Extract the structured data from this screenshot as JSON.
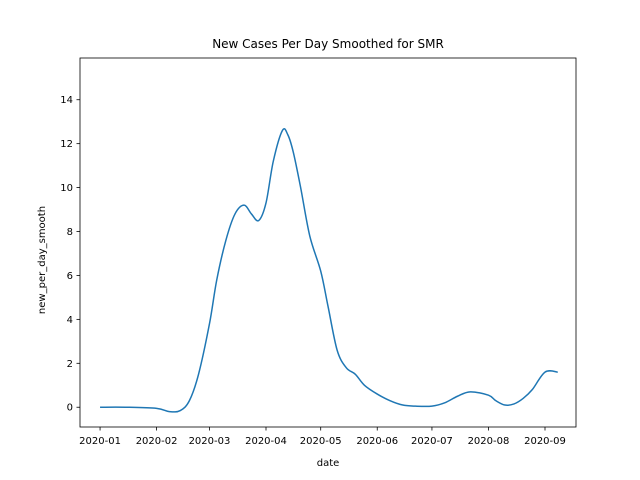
{
  "chart_data": {
    "type": "line",
    "title": "New Cases Per Day Smoothed for SMR",
    "xlabel": "date",
    "ylabel": "new_per_day_smooth",
    "xlim": [
      "2019-12-21",
      "2020-09-18"
    ],
    "ylim": [
      -0.9,
      15.9
    ],
    "x_ticks": [
      "2020-01",
      "2020-02",
      "2020-03",
      "2020-04",
      "2020-05",
      "2020-06",
      "2020-07",
      "2020-08",
      "2020-09"
    ],
    "x_tick_dates": [
      "2020-01-01",
      "2020-02-01",
      "2020-03-01",
      "2020-04-01",
      "2020-05-01",
      "2020-06-01",
      "2020-07-01",
      "2020-08-01",
      "2020-09-01"
    ],
    "y_ticks": [
      0,
      2,
      4,
      6,
      8,
      10,
      12,
      14
    ],
    "grid": false,
    "legend": "none",
    "color": "#1f77b4",
    "series": [
      {
        "x": [
          "2020-01-01",
          "2020-01-15",
          "2020-02-01",
          "2020-02-08",
          "2020-02-14",
          "2020-02-19",
          "2020-02-24",
          "2020-03-01",
          "2020-03-05",
          "2020-03-10",
          "2020-03-15",
          "2020-03-20",
          "2020-03-24",
          "2020-03-28",
          "2020-04-01",
          "2020-04-05",
          "2020-04-10",
          "2020-04-13",
          "2020-04-16",
          "2020-04-20",
          "2020-04-25",
          "2020-05-01",
          "2020-05-05",
          "2020-05-10",
          "2020-05-15",
          "2020-05-20",
          "2020-05-25",
          "2020-06-01",
          "2020-06-08",
          "2020-06-15",
          "2020-06-22",
          "2020-07-01",
          "2020-07-08",
          "2020-07-15",
          "2020-07-22",
          "2020-08-01",
          "2020-08-05",
          "2020-08-10",
          "2020-08-15",
          "2020-08-20",
          "2020-08-25",
          "2020-09-01",
          "2020-09-08"
        ],
        "y": [
          0,
          0,
          -0.05,
          -0.2,
          -0.15,
          0.3,
          1.5,
          3.8,
          5.8,
          7.6,
          8.8,
          9.2,
          8.8,
          8.5,
          9.3,
          11.2,
          12.6,
          12.4,
          11.6,
          10.0,
          7.8,
          6.2,
          4.6,
          2.6,
          1.8,
          1.5,
          1.0,
          0.6,
          0.3,
          0.1,
          0.05,
          0.05,
          0.2,
          0.5,
          0.7,
          0.55,
          0.3,
          0.1,
          0.15,
          0.4,
          0.8,
          1.6,
          1.6
        ]
      }
    ]
  }
}
